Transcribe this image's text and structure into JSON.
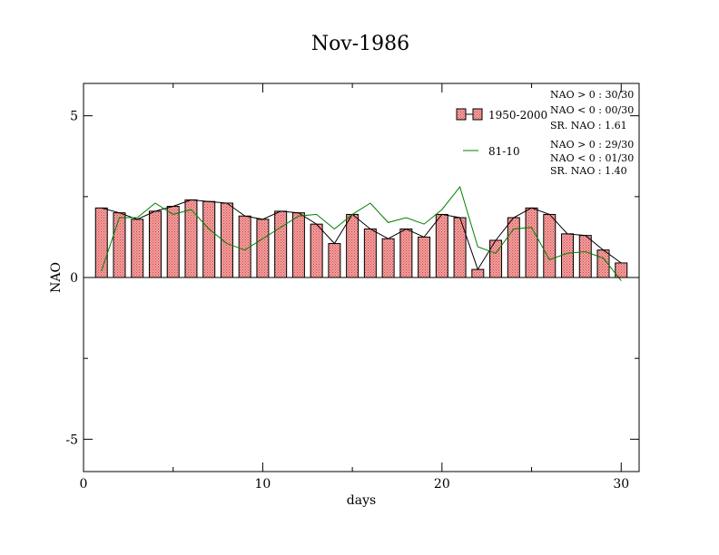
{
  "chart_data": {
    "type": "bar",
    "title": "Nov-1986",
    "xlabel": "days",
    "ylabel": "NAO",
    "xlim": [
      0,
      31
    ],
    "ylim": [
      -6,
      6
    ],
    "xticks": [
      0,
      10,
      20,
      30
    ],
    "xtick_labels": [
      "0",
      "10",
      "20",
      "30"
    ],
    "yticks": [
      -5,
      0,
      5
    ],
    "ytick_labels": [
      "-5",
      "0",
      "5"
    ],
    "grid": false,
    "legend_position": "top-right",
    "colors": {
      "bar_fill": "#f08c8c",
      "bar_stroke": "#000000",
      "line_1950": "#000000",
      "line_8110": "#008000"
    },
    "x": [
      1,
      2,
      3,
      4,
      5,
      6,
      7,
      8,
      9,
      10,
      11,
      12,
      13,
      14,
      15,
      16,
      17,
      18,
      19,
      20,
      21,
      22,
      23,
      24,
      25,
      26,
      27,
      28,
      29,
      30
    ],
    "series": [
      {
        "name": "1950-2000",
        "kind": "bar+line",
        "values": [
          2.15,
          2.0,
          1.8,
          2.05,
          2.2,
          2.4,
          2.35,
          2.3,
          1.9,
          1.8,
          2.05,
          2.0,
          1.65,
          1.05,
          1.95,
          1.5,
          1.2,
          1.5,
          1.25,
          1.95,
          1.85,
          0.25,
          1.15,
          1.85,
          2.15,
          1.95,
          1.35,
          1.3,
          0.85,
          0.45
        ]
      },
      {
        "name": "81-10",
        "kind": "line",
        "values": [
          0.2,
          1.85,
          1.85,
          2.3,
          1.95,
          2.1,
          1.5,
          1.05,
          0.85,
          1.2,
          1.55,
          1.9,
          1.95,
          1.5,
          1.95,
          2.3,
          1.7,
          1.85,
          1.65,
          2.1,
          2.8,
          0.95,
          0.75,
          1.5,
          1.55,
          0.55,
          0.75,
          0.8,
          0.6,
          -0.1
        ]
      }
    ],
    "stats": {
      "s1950": [
        "NAO > 0 : 30/30",
        "NAO < 0 : 00/30",
        "SR. NAO :  1.61"
      ],
      "s8110": [
        "NAO > 0 : 29/30",
        "NAO < 0 : 01/30",
        "SR. NAO :  1.40"
      ]
    }
  }
}
